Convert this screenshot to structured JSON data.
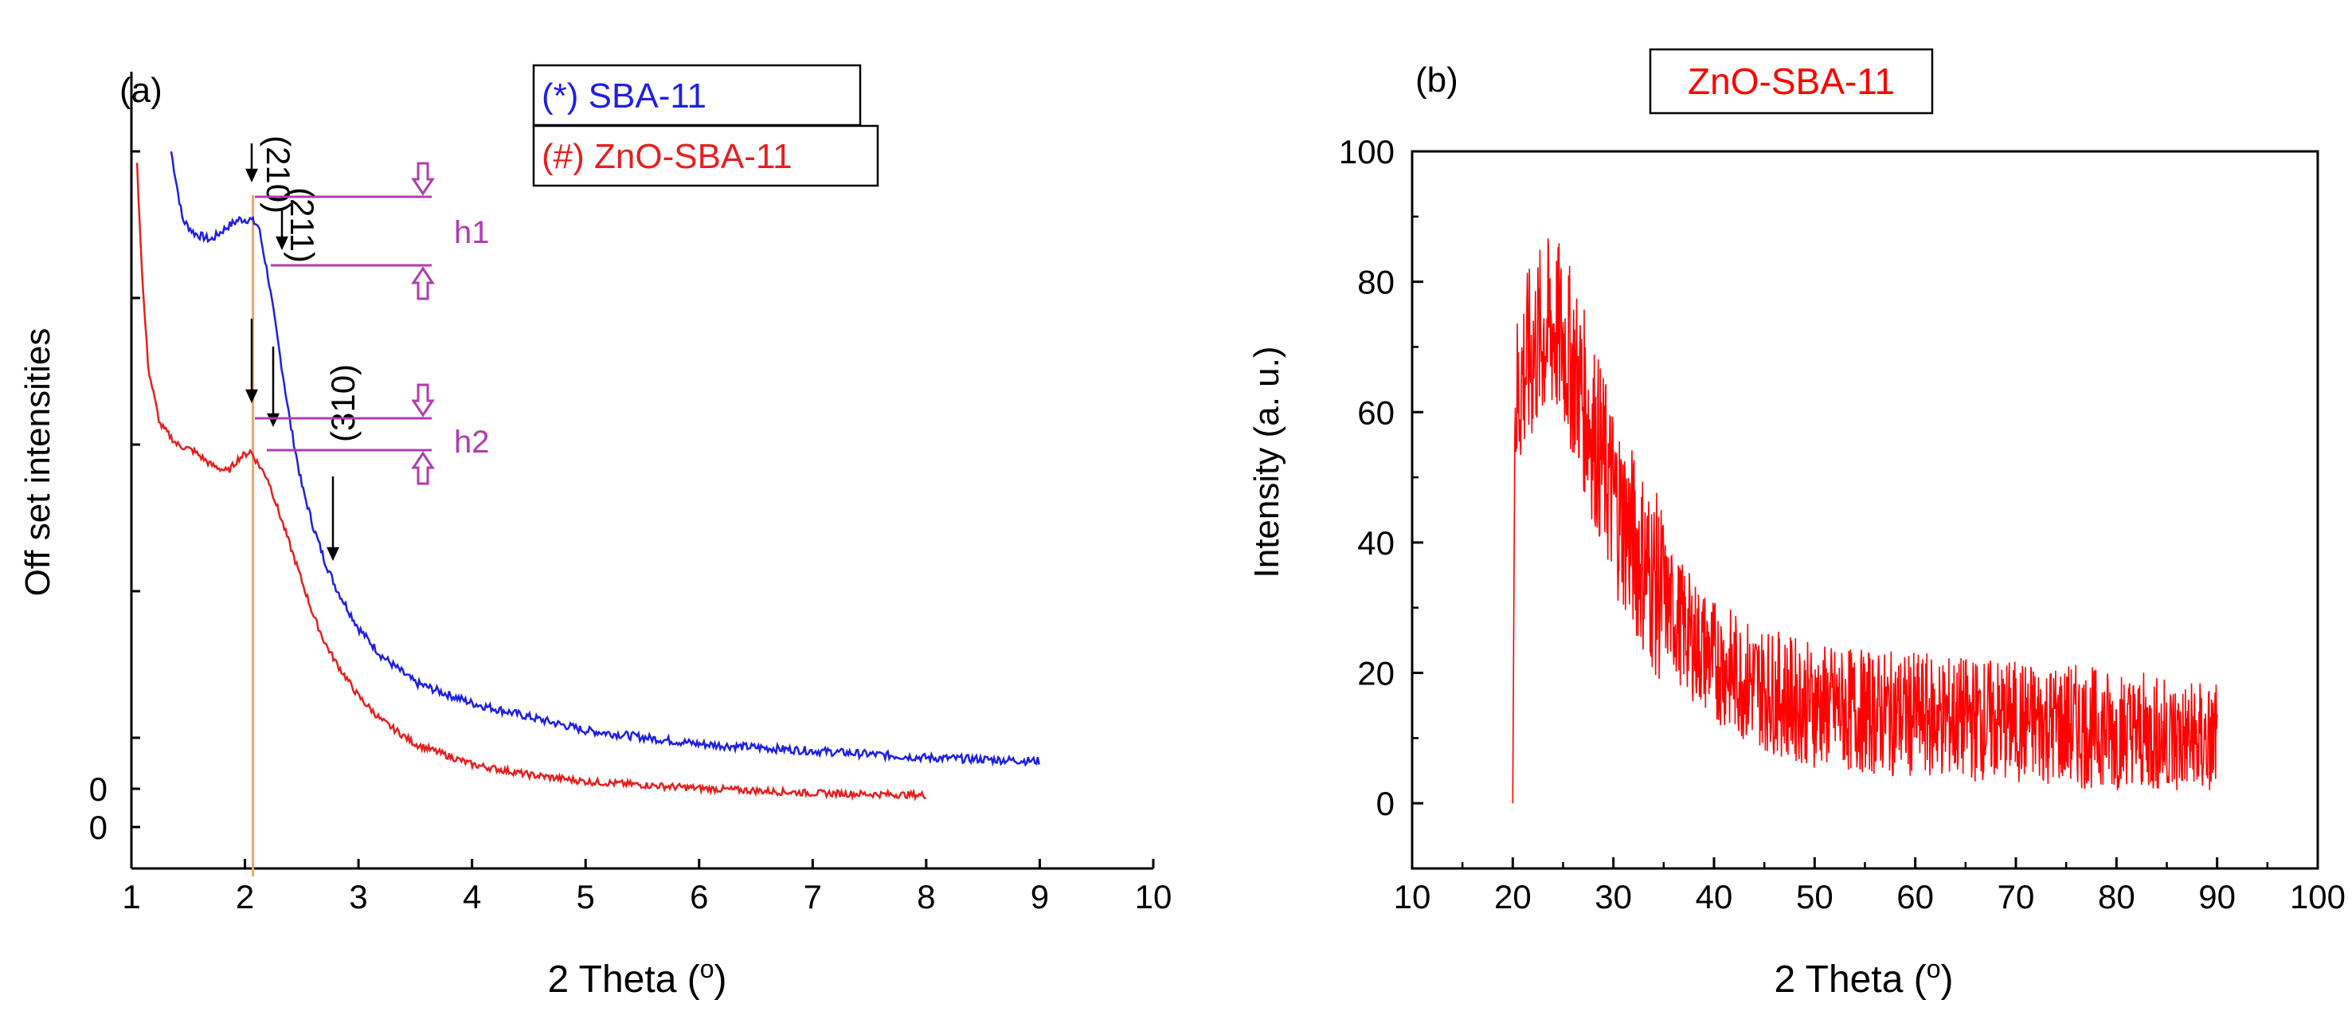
{
  "chart_data": [
    {
      "panel": "(a)",
      "type": "line",
      "xlabel": "2 Theta (o)",
      "ylabel": "Off set intensities",
      "xlim": [
        1,
        10
      ],
      "xticks": [
        "1",
        "2",
        "3",
        "4",
        "5",
        "6",
        "7",
        "8",
        "9",
        "10"
      ],
      "y_zero_labels": [
        "0",
        "0"
      ],
      "legend": [
        "(*) SBA-11",
        "(#) ZnO-SBA-11"
      ],
      "reference_line_x": 2.07,
      "series": [
        {
          "name": "(*) SBA-11",
          "color": "#1f1fe6",
          "x": [
            1.35,
            1.45,
            1.55,
            1.7,
            1.85,
            1.95,
            2.05,
            2.12,
            2.2,
            2.3,
            2.4,
            2.5,
            2.6,
            2.7,
            2.8,
            3.0,
            3.2,
            3.5,
            4.0,
            4.5,
            5.0,
            6.0,
            7.0,
            8.0,
            9.0
          ],
          "y": [
            1.0,
            0.9,
            0.88,
            0.87,
            0.89,
            0.9,
            0.9,
            0.89,
            0.82,
            0.71,
            0.6,
            0.51,
            0.45,
            0.4,
            0.36,
            0.3,
            0.26,
            0.22,
            0.19,
            0.17,
            0.15,
            0.13,
            0.12,
            0.11,
            0.105
          ]
        },
        {
          "name": "(#) ZnO-SBA-11",
          "color": "#e61f1f",
          "x": [
            1.05,
            1.1,
            1.15,
            1.25,
            1.4,
            1.55,
            1.7,
            1.85,
            1.95,
            2.05,
            2.12,
            2.2,
            2.3,
            2.4,
            2.5,
            2.6,
            2.7,
            2.8,
            3.0,
            3.2,
            3.5,
            4.0,
            4.5,
            5.0,
            6.0,
            7.0,
            8.0
          ],
          "y": [
            0.98,
            0.8,
            0.68,
            0.6,
            0.57,
            0.56,
            0.54,
            0.53,
            0.55,
            0.56,
            0.54,
            0.52,
            0.47,
            0.42,
            0.37,
            0.32,
            0.28,
            0.25,
            0.2,
            0.165,
            0.13,
            0.1,
            0.085,
            0.075,
            0.065,
            0.058,
            0.055
          ]
        }
      ],
      "annotations": [
        {
          "label": "(210)",
          "x": 2.1
        },
        {
          "label": "(211)",
          "x": 2.35
        },
        {
          "label": "(310)",
          "x": 2.75
        },
        {
          "label": "h1"
        },
        {
          "label": "h2"
        }
      ]
    },
    {
      "panel": "(b)",
      "type": "line",
      "title": "ZnO-SBA-11",
      "xlabel": "2 Theta (o)",
      "ylabel": "Intensity (a. u.)",
      "xlim": [
        10,
        100
      ],
      "ylim": [
        -10,
        100
      ],
      "xticks": [
        "10",
        "20",
        "30",
        "40",
        "50",
        "60",
        "70",
        "80",
        "90",
        "100"
      ],
      "yticks": [
        "0",
        "20",
        "40",
        "60",
        "80",
        "100"
      ],
      "series": [
        {
          "name": "ZnO-SBA-11",
          "color": "#ff0000",
          "x": [
            20,
            20.2,
            21,
            22,
            23,
            24,
            25,
            26,
            27,
            28,
            29,
            30,
            32,
            34,
            36,
            38,
            40,
            43,
            46,
            50,
            55,
            60,
            65,
            70,
            75,
            80,
            85,
            90
          ],
          "y": [
            0,
            60,
            66,
            69,
            72,
            73,
            71,
            67,
            62,
            57,
            52,
            47,
            40,
            34,
            29,
            25,
            22,
            19,
            17,
            15,
            14,
            13.5,
            13,
            12.5,
            12,
            11,
            10,
            9
          ],
          "noise_amplitude": 12
        }
      ]
    }
  ],
  "panel_a": {
    "label": "(a)",
    "ylabel": "Off set intensities",
    "xlabel_main": "2 Theta (",
    "xlabel_sup": "o",
    "xlabel_end": ")",
    "zero_label_top": "0",
    "zero_label_bottom": "0",
    "legend_item_1": "(*) SBA-11",
    "legend_item_2": "(#) ZnO-SBA-11",
    "peak_210": "(210)",
    "peak_211": "(211)",
    "peak_310": "(310)",
    "h1": "h1",
    "h2": "h2",
    "ticks": [
      "1",
      "2",
      "3",
      "4",
      "5",
      "6",
      "7",
      "8",
      "9",
      "10"
    ]
  },
  "panel_b": {
    "label": "(b)",
    "title": "ZnO-SBA-11",
    "ylabel": "Intensity (a. u.)",
    "xlabel_main": "2 Theta (",
    "xlabel_sup": "o",
    "xlabel_end": ")",
    "xticks": [
      "10",
      "20",
      "30",
      "40",
      "50",
      "60",
      "70",
      "80",
      "90",
      "100"
    ],
    "yticks": [
      "0",
      "20",
      "40",
      "60",
      "80",
      "100"
    ]
  },
  "colors": {
    "sba": "#1f1fe6",
    "zno": "#e61f1f",
    "zno_b": "#ff0000",
    "marker": "#b03cb0",
    "refline": "#f4a460",
    "axis": "#000000"
  }
}
